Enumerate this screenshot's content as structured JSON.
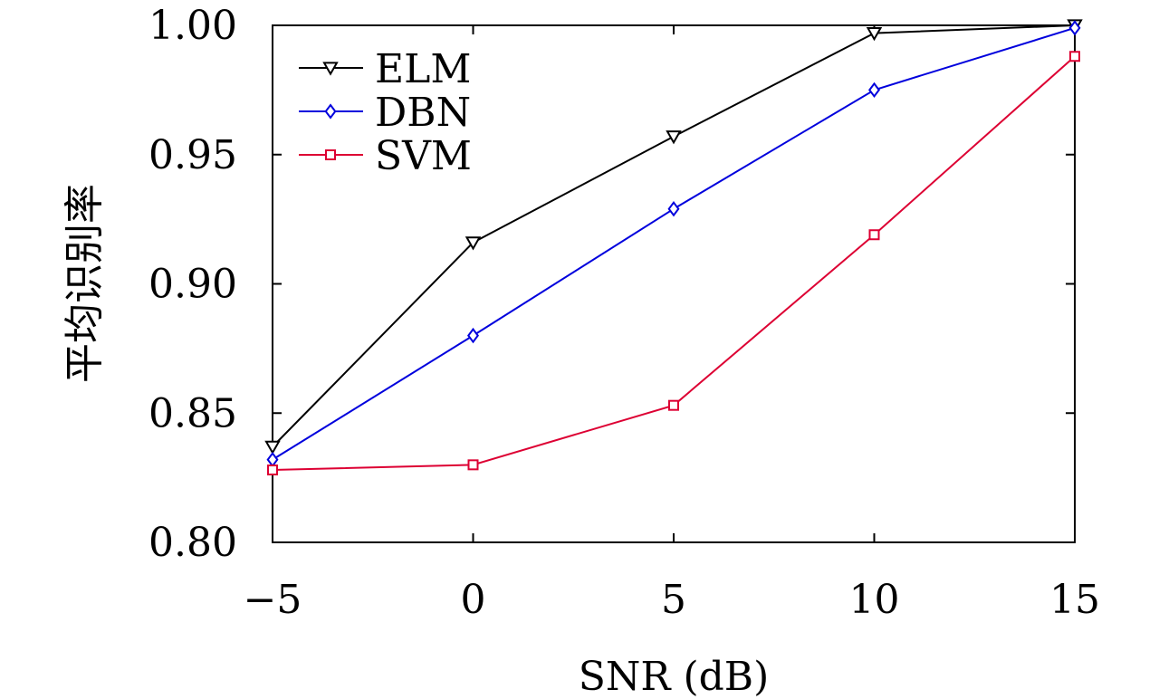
{
  "chart_data": {
    "type": "line",
    "title": "",
    "xlabel": "SNR (dB)",
    "ylabel": "平均识别率",
    "x": [
      -5,
      0,
      5,
      10,
      15
    ],
    "xlim": [
      -5,
      15
    ],
    "ylim": [
      0.8,
      1.0
    ],
    "xticks": [
      -5,
      0,
      5,
      10,
      15
    ],
    "xtick_labels": [
      "−5",
      "0",
      "5",
      "10",
      "15"
    ],
    "yticks": [
      0.8,
      0.85,
      0.9,
      0.95,
      1.0
    ],
    "ytick_labels": [
      "0.80",
      "0.85",
      "0.90",
      "0.95",
      "1.00"
    ],
    "grid": false,
    "legend_position": "top-left",
    "series": [
      {
        "name": "ELM",
        "marker": "triangle-down",
        "color": "#000000",
        "values": [
          0.837,
          0.916,
          0.957,
          0.997,
          1.0
        ]
      },
      {
        "name": "DBN",
        "marker": "diamond",
        "color": "#0000dd",
        "values": [
          0.832,
          0.88,
          0.929,
          0.975,
          0.999
        ]
      },
      {
        "name": "SVM",
        "marker": "square",
        "color": "#dd0033",
        "values": [
          0.828,
          0.83,
          0.853,
          0.919,
          0.988
        ]
      }
    ]
  }
}
